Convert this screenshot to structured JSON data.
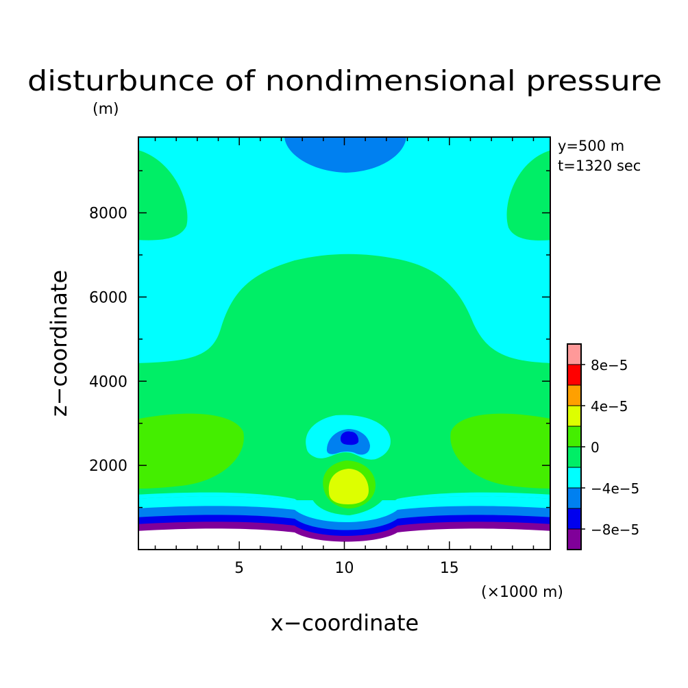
{
  "chart_data": {
    "type": "heatmap",
    "subtype": "filled-contour",
    "title": "disturbunce of nondimensional pressure",
    "units_label": "(m)",
    "xlabel": "x−coordinate",
    "ylabel": "z−coordinate",
    "x_unit_label": "(×1000 m)",
    "xlim": [
      0.2,
      19.8
    ],
    "ylim": [
      0,
      9800
    ],
    "xticks": [
      5,
      10,
      15
    ],
    "yticks": [
      2000,
      4000,
      6000,
      8000
    ],
    "xtick_labels": [
      "5",
      "10",
      "15"
    ],
    "ytick_labels": [
      "2000",
      "4000",
      "6000",
      "8000"
    ],
    "annotations": [
      "y=500 m",
      "t=1320 sec"
    ],
    "colorbar": {
      "levels": [
        -0.0001,
        -8e-05,
        -6e-05,
        -4e-05,
        -2e-05,
        0,
        2e-05,
        4e-05,
        6e-05,
        8e-05,
        0.0001
      ],
      "colors": [
        "#800099",
        "#0000ee",
        "#0080f0",
        "#00ffff",
        "#00ee66",
        "#44ee00",
        "#ddff00",
        "#ffa000",
        "#ff0000",
        "#ff9999"
      ],
      "tick_labels": [
        "8e−5",
        "4e−5",
        "0",
        "−4e−5",
        "−8e−5"
      ]
    },
    "regions": [
      {
        "level_index": 3,
        "description": "background field"
      },
      {
        "level_index": 2,
        "description": "upper center near x=10, z>9100"
      },
      {
        "level_index": 4,
        "description": "upper corners z 7500-9600"
      },
      {
        "level_index": 4,
        "description": "central dome z 1500-7200"
      },
      {
        "level_index": 5,
        "description": "side lobes z 1500-3300"
      },
      {
        "level_index": 6,
        "description": "center positive core z 1100-1900"
      },
      {
        "level_index": 1,
        "description": "center negative core z 2500-2800"
      },
      {
        "level_index": 0,
        "description": "bottom band above topography"
      }
    ],
    "grid": false,
    "legend": "colorbar right"
  }
}
